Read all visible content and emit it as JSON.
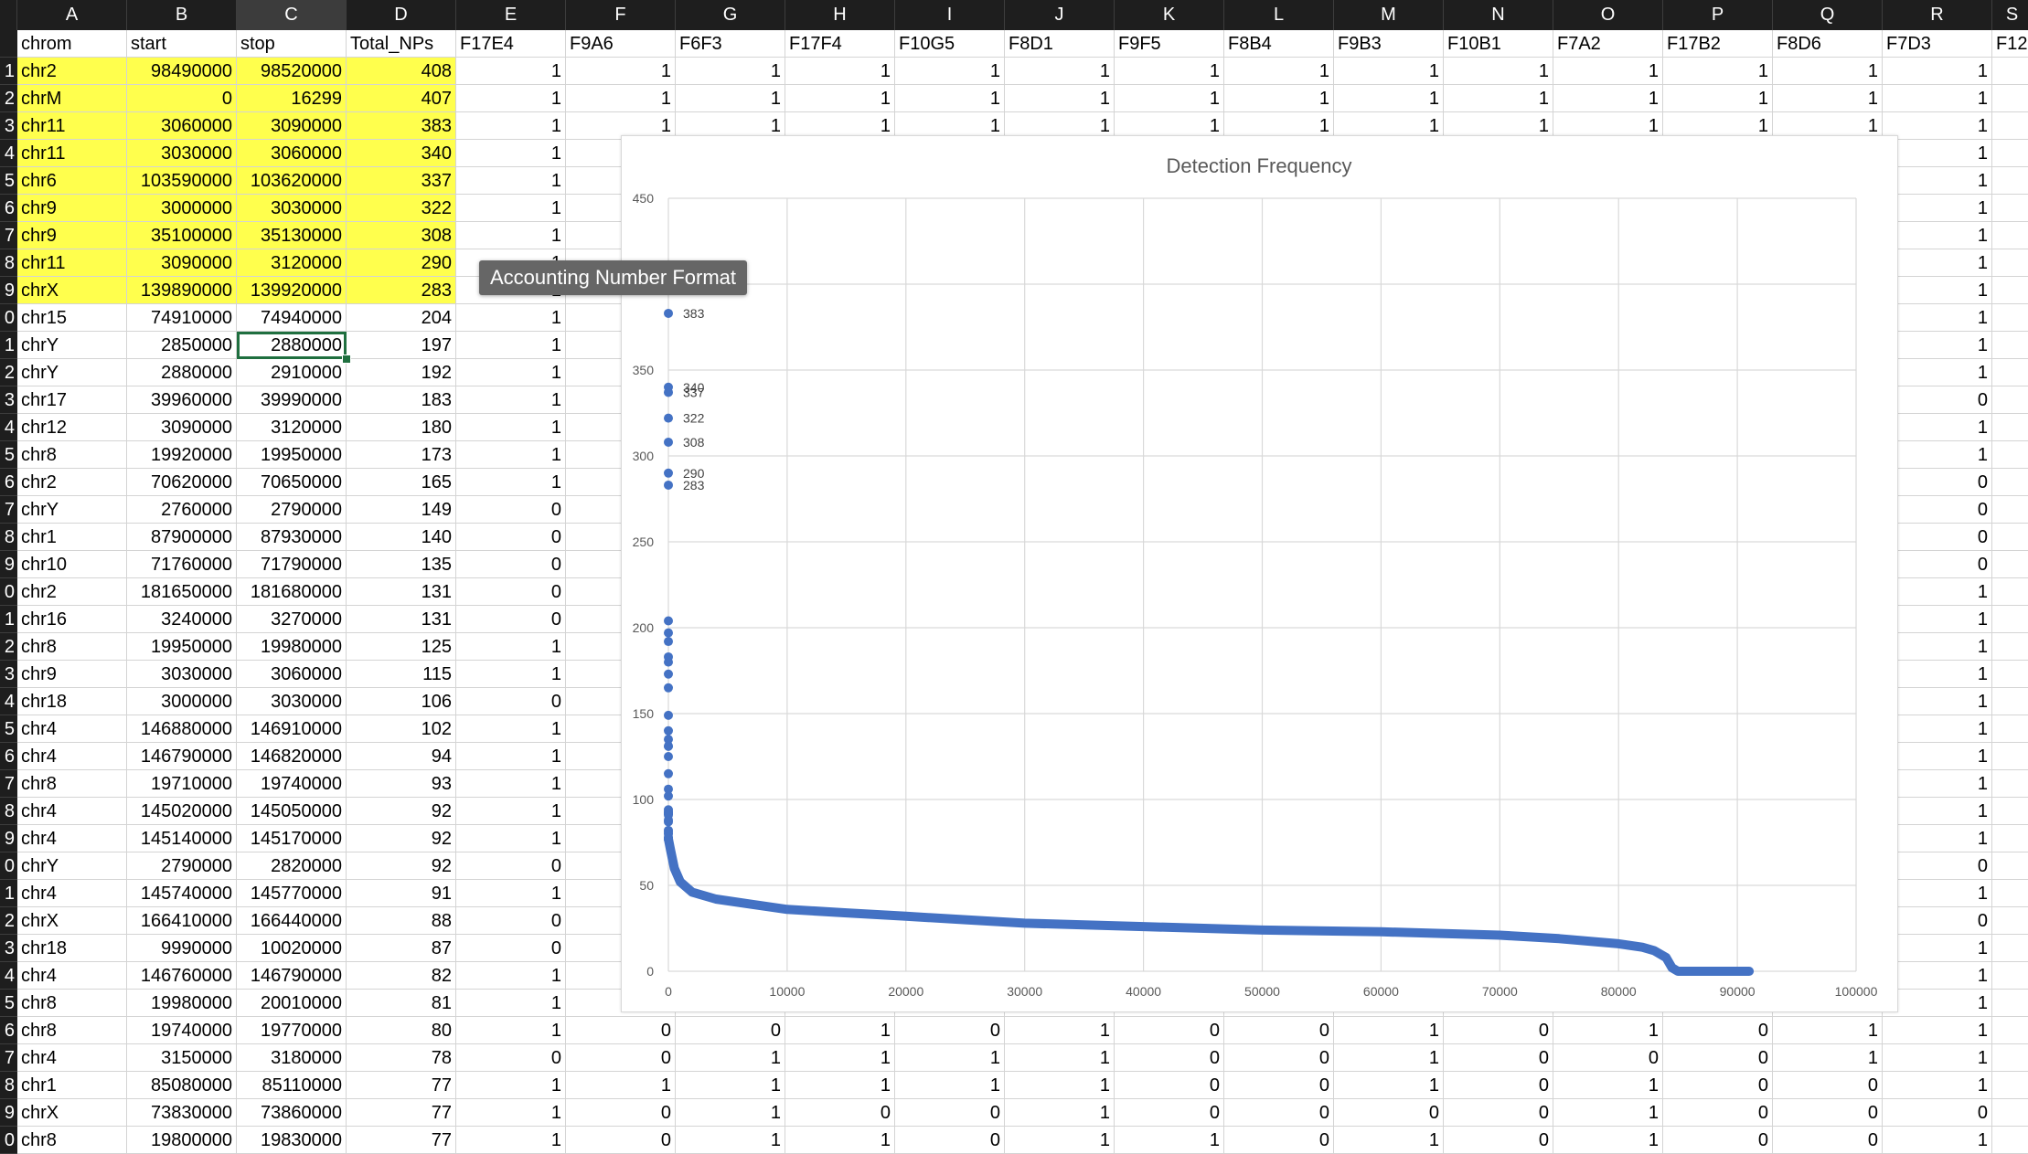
{
  "columns": [
    "A",
    "B",
    "C",
    "D",
    "E",
    "F",
    "G",
    "H",
    "I",
    "J",
    "K",
    "L",
    "M",
    "N",
    "O",
    "P",
    "Q",
    "R",
    "S"
  ],
  "selected_column": "C",
  "row_labels": [
    "",
    "1",
    "2",
    "3",
    "4",
    "5",
    "6",
    "7",
    "8",
    "9",
    "0",
    "1",
    "2",
    "3",
    "4",
    "5",
    "6",
    "7",
    "8",
    "9",
    "0",
    "1",
    "2",
    "3",
    "4",
    "5",
    "6",
    "7",
    "8",
    "9",
    "0",
    "1",
    "2",
    "3",
    "4",
    "5",
    "6",
    "7",
    "8",
    "9",
    "0",
    ""
  ],
  "header": [
    "chrom",
    "start",
    "stop",
    "Total_NPs",
    "F17E4",
    "F9A6",
    "F6F3",
    "F17F4",
    "F10G5",
    "F8D1",
    "F9F5",
    "F8B4",
    "F9B3",
    "F10B1",
    "F7A2",
    "F17B2",
    "F8D6",
    "F7D3",
    "F12"
  ],
  "rows": [
    [
      "chr2",
      "98490000",
      "98520000",
      "408",
      "1",
      "1",
      "1",
      "1",
      "1",
      "1",
      "1",
      "1",
      "1",
      "1",
      "1",
      "1",
      "1",
      "1",
      ""
    ],
    [
      "chrM",
      "0",
      "16299",
      "407",
      "1",
      "1",
      "1",
      "1",
      "1",
      "1",
      "1",
      "1",
      "1",
      "1",
      "1",
      "1",
      "1",
      "1",
      ""
    ],
    [
      "chr11",
      "3060000",
      "3090000",
      "383",
      "1",
      "1",
      "1",
      "1",
      "1",
      "1",
      "1",
      "1",
      "1",
      "1",
      "1",
      "1",
      "1",
      "1",
      ""
    ],
    [
      "chr11",
      "3030000",
      "3060000",
      "340",
      "1",
      "",
      "",
      "",
      "",
      "",
      "",
      "",
      "",
      "",
      "",
      "",
      "",
      "1",
      ""
    ],
    [
      "chr6",
      "103590000",
      "103620000",
      "337",
      "1",
      "",
      "",
      "",
      "",
      "",
      "",
      "",
      "",
      "",
      "",
      "",
      "",
      "1",
      ""
    ],
    [
      "chr9",
      "3000000",
      "3030000",
      "322",
      "1",
      "",
      "",
      "",
      "",
      "",
      "",
      "",
      "",
      "",
      "",
      "",
      "",
      "1",
      ""
    ],
    [
      "chr9",
      "35100000",
      "35130000",
      "308",
      "1",
      "",
      "",
      "",
      "",
      "",
      "",
      "",
      "",
      "",
      "",
      "",
      "",
      "1",
      ""
    ],
    [
      "chr11",
      "3090000",
      "3120000",
      "290",
      "1",
      "",
      "",
      "",
      "",
      "",
      "",
      "",
      "",
      "",
      "",
      "",
      "",
      "1",
      ""
    ],
    [
      "chrX",
      "139890000",
      "139920000",
      "283",
      "1",
      "",
      "",
      "",
      "",
      "",
      "",
      "",
      "",
      "",
      "",
      "",
      "",
      "1",
      ""
    ],
    [
      "chr15",
      "74910000",
      "74940000",
      "204",
      "1",
      "",
      "",
      "",
      "",
      "",
      "",
      "",
      "",
      "",
      "",
      "",
      "",
      "1",
      ""
    ],
    [
      "chrY",
      "2850000",
      "2880000",
      "197",
      "1",
      "",
      "",
      "",
      "",
      "",
      "",
      "",
      "",
      "",
      "",
      "",
      "",
      "1",
      ""
    ],
    [
      "chrY",
      "2880000",
      "2910000",
      "192",
      "1",
      "",
      "",
      "",
      "",
      "",
      "",
      "",
      "",
      "",
      "",
      "",
      "",
      "1",
      ""
    ],
    [
      "chr17",
      "39960000",
      "39990000",
      "183",
      "1",
      "",
      "",
      "",
      "",
      "",
      "",
      "",
      "",
      "",
      "",
      "",
      "",
      "0",
      ""
    ],
    [
      "chr12",
      "3090000",
      "3120000",
      "180",
      "1",
      "",
      "",
      "",
      "",
      "",
      "",
      "",
      "",
      "",
      "",
      "",
      "",
      "1",
      ""
    ],
    [
      "chr8",
      "19920000",
      "19950000",
      "173",
      "1",
      "",
      "",
      "",
      "",
      "",
      "",
      "",
      "",
      "",
      "",
      "",
      "",
      "1",
      ""
    ],
    [
      "chr2",
      "70620000",
      "70650000",
      "165",
      "1",
      "",
      "",
      "",
      "",
      "",
      "",
      "",
      "",
      "",
      "",
      "",
      "",
      "0",
      ""
    ],
    [
      "chrY",
      "2760000",
      "2790000",
      "149",
      "0",
      "",
      "",
      "",
      "",
      "",
      "",
      "",
      "",
      "",
      "",
      "",
      "",
      "0",
      ""
    ],
    [
      "chr1",
      "87900000",
      "87930000",
      "140",
      "0",
      "",
      "",
      "",
      "",
      "",
      "",
      "",
      "",
      "",
      "",
      "",
      "",
      "0",
      ""
    ],
    [
      "chr10",
      "71760000",
      "71790000",
      "135",
      "0",
      "",
      "",
      "",
      "",
      "",
      "",
      "",
      "",
      "",
      "",
      "",
      "",
      "0",
      ""
    ],
    [
      "chr2",
      "181650000",
      "181680000",
      "131",
      "0",
      "",
      "",
      "",
      "",
      "",
      "",
      "",
      "",
      "",
      "",
      "",
      "",
      "1",
      ""
    ],
    [
      "chr16",
      "3240000",
      "3270000",
      "131",
      "0",
      "",
      "",
      "",
      "",
      "",
      "",
      "",
      "",
      "",
      "",
      "",
      "",
      "1",
      ""
    ],
    [
      "chr8",
      "19950000",
      "19980000",
      "125",
      "1",
      "",
      "",
      "",
      "",
      "",
      "",
      "",
      "",
      "",
      "",
      "",
      "",
      "1",
      ""
    ],
    [
      "chr9",
      "3030000",
      "3060000",
      "115",
      "1",
      "",
      "",
      "",
      "",
      "",
      "",
      "",
      "",
      "",
      "",
      "",
      "",
      "1",
      ""
    ],
    [
      "chr18",
      "3000000",
      "3030000",
      "106",
      "0",
      "",
      "",
      "",
      "",
      "",
      "",
      "",
      "",
      "",
      "",
      "",
      "",
      "1",
      ""
    ],
    [
      "chr4",
      "146880000",
      "146910000",
      "102",
      "1",
      "",
      "",
      "",
      "",
      "",
      "",
      "",
      "",
      "",
      "",
      "",
      "",
      "1",
      ""
    ],
    [
      "chr4",
      "146790000",
      "146820000",
      "94",
      "1",
      "",
      "",
      "",
      "",
      "",
      "",
      "",
      "",
      "",
      "",
      "",
      "",
      "1",
      ""
    ],
    [
      "chr8",
      "19710000",
      "19740000",
      "93",
      "1",
      "",
      "",
      "",
      "",
      "",
      "",
      "",
      "",
      "",
      "",
      "",
      "",
      "1",
      ""
    ],
    [
      "chr4",
      "145020000",
      "145050000",
      "92",
      "1",
      "",
      "",
      "",
      "",
      "",
      "",
      "",
      "",
      "",
      "",
      "",
      "",
      "1",
      ""
    ],
    [
      "chr4",
      "145140000",
      "145170000",
      "92",
      "1",
      "",
      "",
      "",
      "",
      "",
      "",
      "",
      "",
      "",
      "",
      "",
      "",
      "1",
      ""
    ],
    [
      "chrY",
      "2790000",
      "2820000",
      "92",
      "0",
      "",
      "",
      "",
      "",
      "",
      "",
      "",
      "",
      "",
      "",
      "",
      "",
      "0",
      ""
    ],
    [
      "chr4",
      "145740000",
      "145770000",
      "91",
      "1",
      "",
      "",
      "",
      "",
      "",
      "",
      "",
      "",
      "",
      "",
      "",
      "",
      "1",
      ""
    ],
    [
      "chrX",
      "166410000",
      "166440000",
      "88",
      "0",
      "",
      "",
      "",
      "",
      "",
      "",
      "",
      "",
      "",
      "",
      "",
      "",
      "0",
      ""
    ],
    [
      "chr18",
      "9990000",
      "10020000",
      "87",
      "0",
      "",
      "",
      "",
      "",
      "",
      "",
      "",
      "",
      "",
      "",
      "",
      "",
      "1",
      ""
    ],
    [
      "chr4",
      "146760000",
      "146790000",
      "82",
      "1",
      "",
      "",
      "",
      "",
      "",
      "",
      "",
      "",
      "",
      "",
      "",
      "",
      "1",
      ""
    ],
    [
      "chr8",
      "19980000",
      "20010000",
      "81",
      "1",
      "",
      "",
      "",
      "",
      "",
      "",
      "",
      "",
      "",
      "",
      "",
      "",
      "1",
      ""
    ],
    [
      "chr8",
      "19740000",
      "19770000",
      "80",
      "1",
      "0",
      "0",
      "1",
      "0",
      "1",
      "0",
      "0",
      "1",
      "0",
      "1",
      "0",
      "1",
      "1",
      ""
    ],
    [
      "chr4",
      "3150000",
      "3180000",
      "78",
      "0",
      "0",
      "1",
      "1",
      "1",
      "1",
      "0",
      "0",
      "1",
      "0",
      "0",
      "0",
      "1",
      "1",
      ""
    ],
    [
      "chr1",
      "85080000",
      "85110000",
      "77",
      "1",
      "1",
      "1",
      "1",
      "1",
      "1",
      "0",
      "0",
      "1",
      "0",
      "1",
      "0",
      "0",
      "1",
      ""
    ],
    [
      "chrX",
      "73830000",
      "73860000",
      "77",
      "1",
      "0",
      "1",
      "0",
      "0",
      "1",
      "0",
      "0",
      "0",
      "0",
      "1",
      "0",
      "0",
      "0",
      ""
    ],
    [
      "chr8",
      "19800000",
      "19830000",
      "77",
      "1",
      "0",
      "1",
      "1",
      "0",
      "1",
      "1",
      "0",
      "1",
      "0",
      "1",
      "0",
      "0",
      "1",
      ""
    ]
  ],
  "highlighted_rows": 9,
  "active_cell": {
    "row": 11,
    "col": 2
  },
  "tooltip": "Accounting Number Format",
  "chart_data": {
    "type": "scatter",
    "title": "Detection Frequency",
    "xlabel": "",
    "ylabel": "",
    "xlim": [
      0,
      100000
    ],
    "ylim": [
      0,
      450
    ],
    "x_ticks": [
      "0",
      "10000",
      "20000",
      "30000",
      "40000",
      "50000",
      "60000",
      "70000",
      "80000",
      "90000",
      "100000"
    ],
    "y_ticks": [
      "0",
      "50",
      "100",
      "150",
      "200",
      "250",
      "300",
      "350",
      "400",
      "450"
    ],
    "grid": true,
    "color": "#4472c4",
    "labeled_points": [
      {
        "x": 1,
        "y": 383,
        "label": "383"
      },
      {
        "x": 2,
        "y": 340,
        "label": "340"
      },
      {
        "x": 3,
        "y": 337,
        "label": "337"
      },
      {
        "x": 4,
        "y": 322,
        "label": "322"
      },
      {
        "x": 5,
        "y": 308,
        "label": "308"
      },
      {
        "x": 6,
        "y": 290,
        "label": "290"
      },
      {
        "x": 7,
        "y": 283,
        "label": "283"
      }
    ],
    "upper_points_y": [
      204,
      197,
      192,
      183,
      180,
      173,
      165,
      149,
      140,
      135,
      131,
      131,
      125,
      115,
      106,
      102,
      94,
      93,
      92,
      92,
      92,
      91,
      88,
      87,
      82,
      81,
      80,
      78,
      77,
      77,
      77
    ],
    "curve": [
      [
        0,
        77
      ],
      [
        200,
        70
      ],
      [
        500,
        60
      ],
      [
        1000,
        52
      ],
      [
        2000,
        46
      ],
      [
        4000,
        42
      ],
      [
        7000,
        39
      ],
      [
        10000,
        36
      ],
      [
        15000,
        34
      ],
      [
        20000,
        32
      ],
      [
        25000,
        30
      ],
      [
        30000,
        28
      ],
      [
        40000,
        26
      ],
      [
        50000,
        24
      ],
      [
        60000,
        23
      ],
      [
        65000,
        22
      ],
      [
        70000,
        21
      ],
      [
        75000,
        19
      ],
      [
        80000,
        16
      ],
      [
        82000,
        14
      ],
      [
        83000,
        12
      ],
      [
        84000,
        8
      ],
      [
        84500,
        2
      ],
      [
        85000,
        0
      ],
      [
        91000,
        0
      ]
    ]
  }
}
